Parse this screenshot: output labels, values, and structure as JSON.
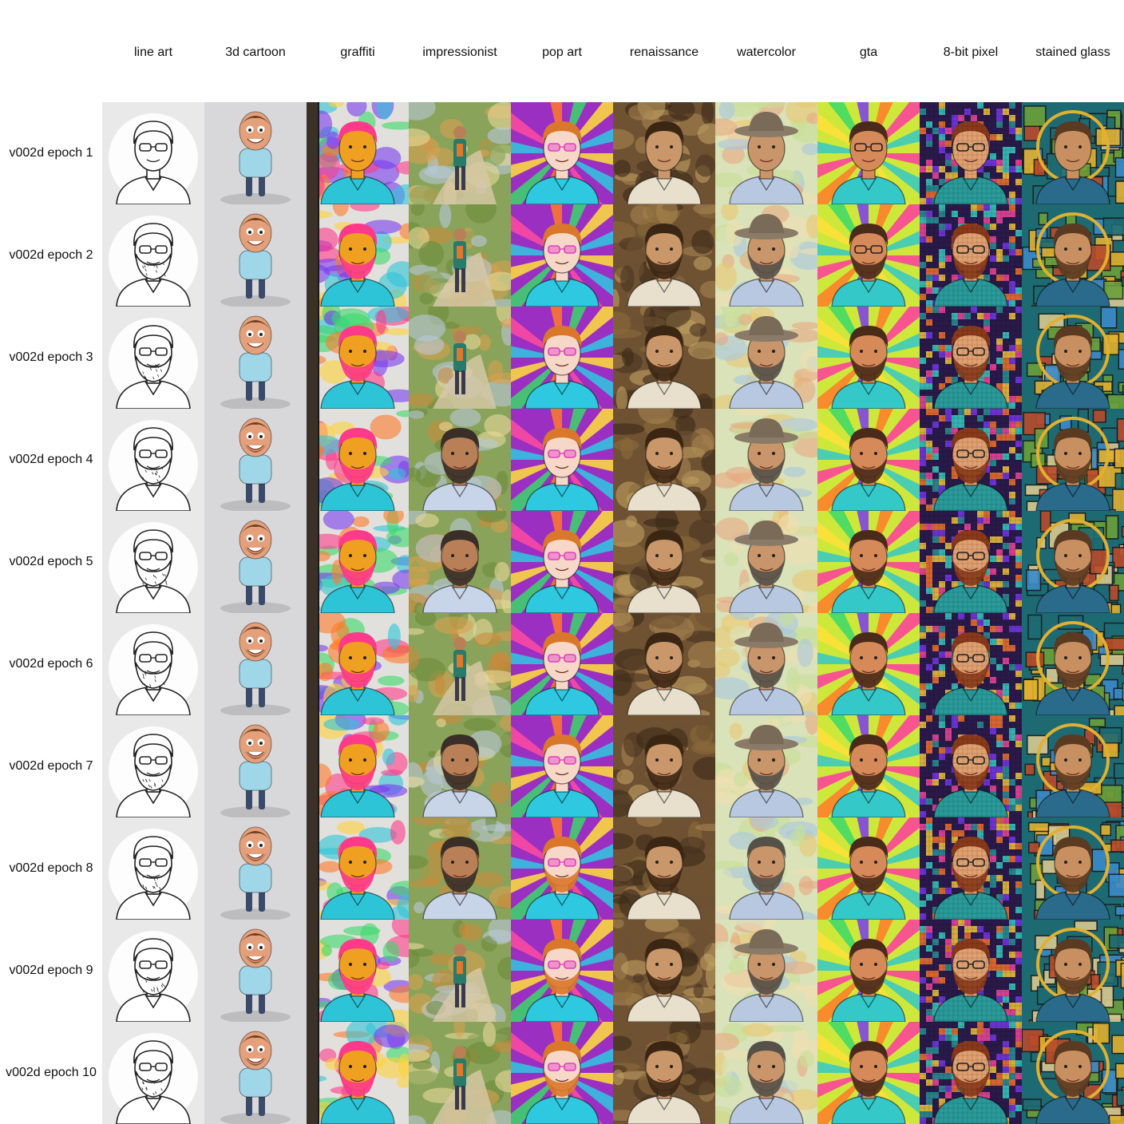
{
  "columns": [
    {
      "label": "line art",
      "style": "lineart",
      "bg": "#e9e9e9",
      "accent": "#222222",
      "skin": "#ffffff",
      "hair": "#ffffff",
      "shirt": "#ffffff"
    },
    {
      "label": "3d cartoon",
      "style": "cartoon",
      "bg": "#d8d8da",
      "accent": "#7a4a2a",
      "skin": "#e4a07a",
      "hair": "#6b3f22",
      "shirt": "#9fd6e8"
    },
    {
      "label": "graffiti",
      "style": "graffiti",
      "bg": "#e2e0dc",
      "accent": "#1a1a6e",
      "skin": "#f0a020",
      "hair": "#ff3a8a",
      "shirt": "#2ec4d8"
    },
    {
      "label": "impressionist",
      "style": "impressionist",
      "bg": "#8aa35a",
      "accent": "#c98a3a",
      "skin": "#b98058",
      "hair": "#3a2f28",
      "shirt": "#c8d4e8"
    },
    {
      "label": "pop art",
      "style": "popart",
      "bg": "#9b2fc2",
      "accent": "#ffe13a",
      "skin": "#f7d8c8",
      "hair": "#d9782a",
      "shirt": "#2ec8e0"
    },
    {
      "label": "renaissance",
      "style": "renaissance",
      "bg": "#6e5232",
      "accent": "#3a2a1a",
      "skin": "#c9976a",
      "hair": "#3b2614",
      "shirt": "#e8e0cc"
    },
    {
      "label": "watercolor",
      "style": "watercolor",
      "bg": "#d9e2b8",
      "accent": "#8a7a6a",
      "skin": "#c9956a",
      "hair": "#555048",
      "shirt": "#b8c8e0"
    },
    {
      "label": "gta",
      "style": "gta",
      "bg": "#cde83a",
      "accent": "#ff3aa0",
      "skin": "#d68a5a",
      "hair": "#4a2a18",
      "shirt": "#34c8c8"
    },
    {
      "label": "8-bit pixel",
      "style": "pixel",
      "bg": "#2a1a4a",
      "accent": "#ff4aa0",
      "skin": "#e0a070",
      "hair": "#8a3a1a",
      "shirt": "#2a9a9a"
    },
    {
      "label": "stained glass",
      "style": "stained",
      "bg": "#1d6a72",
      "accent": "#e0b030",
      "skin": "#c89060",
      "hair": "#5a3a20",
      "shirt": "#2a6a8a"
    }
  ],
  "rows": [
    {
      "label": "v002d epoch 1"
    },
    {
      "label": "v002d epoch 2"
    },
    {
      "label": "v002d epoch 3"
    },
    {
      "label": "v002d epoch 4"
    },
    {
      "label": "v002d epoch 5"
    },
    {
      "label": "v002d epoch 6"
    },
    {
      "label": "v002d epoch 7"
    },
    {
      "label": "v002d epoch 8"
    },
    {
      "label": "v002d epoch 9"
    },
    {
      "label": "v002d epoch 10"
    }
  ]
}
